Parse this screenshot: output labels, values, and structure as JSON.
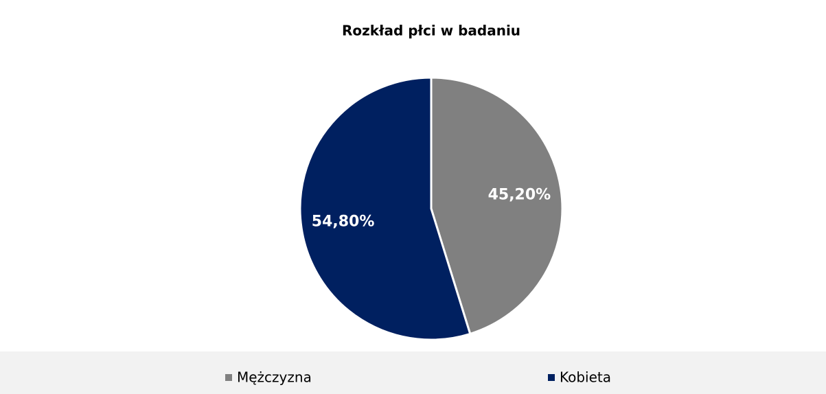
{
  "chart_data": {
    "type": "pie",
    "title": "Rozkład płci w badaniu",
    "categories": [
      "Mężczyzna",
      "Kobieta"
    ],
    "values": [
      45.2,
      54.8
    ],
    "value_labels": [
      "45,20%",
      "54,80%"
    ],
    "colors": [
      "#808080",
      "#002060"
    ]
  }
}
